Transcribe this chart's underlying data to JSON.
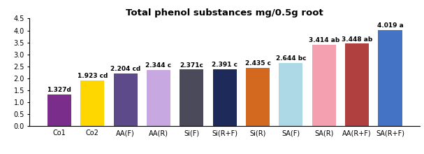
{
  "categories": [
    "Co1",
    "Co2",
    "AA(F)",
    "AA(R)",
    "Si(F)",
    "Si(R+F)",
    "Si(R)",
    "SA(F)",
    "SA(R)",
    "AA(R+F)",
    "SA(R+F)"
  ],
  "values": [
    1.327,
    1.923,
    2.204,
    2.344,
    2.371,
    2.391,
    2.435,
    2.644,
    3.414,
    3.448,
    4.019
  ],
  "labels": [
    "1.327d",
    "1.923 cd",
    "2.204 cd",
    "2.344 c",
    "2.371c",
    "2.391 c",
    "2.435 c",
    "2.644 bc",
    "3.414 ab",
    "3.448 ab",
    "4.019 a"
  ],
  "bar_colors": [
    "#7b2d8b",
    "#ffd700",
    "#5c4a8a",
    "#c8a8e0",
    "#4a4a5a",
    "#1e2a5a",
    "#d2691e",
    "#add8e6",
    "#f4a0b0",
    "#b04040",
    "#4472c4"
  ],
  "title": "Total phenol substances mg/0.5g root",
  "ylim": [
    0,
    4.5
  ],
  "yticks": [
    0,
    0.5,
    1.0,
    1.5,
    2.0,
    2.5,
    3.0,
    3.5,
    4.0,
    4.5
  ],
  "title_fontsize": 9.5,
  "tick_fontsize": 7,
  "bar_label_fontsize": 6.5
}
